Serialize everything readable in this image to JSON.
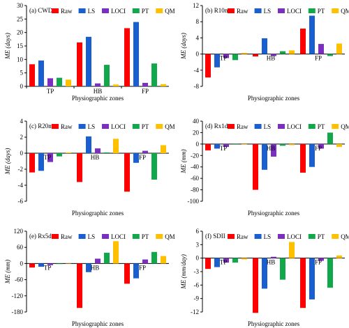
{
  "colors": {
    "Raw": "#ff0000",
    "LS": "#1a5fd1",
    "LOCI": "#7b2fbf",
    "PT": "#10a84a",
    "QM": "#ffc000"
  },
  "chart_data": [
    {
      "type": "bar",
      "panel_label": "(a) CWD",
      "ylabel": "ME (days)",
      "xlabel": "Physiographic zones",
      "categories": [
        "TP",
        "HB",
        "FP"
      ],
      "ylim": [
        0,
        30
      ],
      "yticks": [
        0,
        5,
        10,
        15,
        20,
        25,
        30
      ],
      "legend": "top-right",
      "category_labels_at": "bottom",
      "series": [
        {
          "name": "Raw",
          "values": [
            8.2,
            16.3,
            21.6
          ]
        },
        {
          "name": "LS",
          "values": [
            9.6,
            18.4,
            23.9
          ]
        },
        {
          "name": "LOCI",
          "values": [
            3.0,
            1.1,
            1.3
          ]
        },
        {
          "name": "PT",
          "values": [
            3.2,
            8.0,
            8.5
          ]
        },
        {
          "name": "QM",
          "values": [
            2.5,
            0.7,
            0.8
          ]
        }
      ]
    },
    {
      "type": "bar",
      "panel_label": "(b) R10mm",
      "ylabel": "ME (days)",
      "xlabel": "Physiographic zones",
      "categories": [
        "TP",
        "HB",
        "FP"
      ],
      "ylim": [
        -8,
        12
      ],
      "yticks": [
        -8,
        -4,
        0,
        4,
        8,
        12
      ],
      "legend": "top-right",
      "category_labels_at": "zero",
      "series": [
        {
          "name": "Raw",
          "values": [
            -5.8,
            -0.6,
            6.3
          ]
        },
        {
          "name": "LS",
          "values": [
            -3.3,
            3.9,
            9.5
          ]
        },
        {
          "name": "LOCI",
          "values": [
            -1.0,
            -0.5,
            2.5
          ]
        },
        {
          "name": "PT",
          "values": [
            -1.5,
            0.7,
            -0.5
          ]
        },
        {
          "name": "QM",
          "values": [
            0.3,
            0.9,
            2.6
          ]
        }
      ]
    },
    {
      "type": "bar",
      "panel_label": "(c) R20mm",
      "ylabel": "ME (days)",
      "xlabel": "Physiographic zones",
      "categories": [
        "TP",
        "HB",
        "FP"
      ],
      "ylim": [
        -6,
        4
      ],
      "yticks": [
        -6,
        -4,
        -2,
        0,
        2,
        4
      ],
      "legend": "top-right",
      "category_labels_at": "zero",
      "series": [
        {
          "name": "Raw",
          "values": [
            -2.4,
            -3.6,
            -4.8
          ]
        },
        {
          "name": "LS",
          "values": [
            -2.2,
            2.1,
            -1.2
          ]
        },
        {
          "name": "LOCI",
          "values": [
            -1.1,
            0.6,
            0.3
          ]
        },
        {
          "name": "PT",
          "values": [
            -0.4,
            0.1,
            -3.3
          ]
        },
        {
          "name": "QM",
          "values": [
            0.1,
            1.8,
            1.0
          ]
        }
      ]
    },
    {
      "type": "bar",
      "panel_label": "(d) Rx1d",
      "ylabel": "ME (mm)",
      "xlabel": "Physiographic zones",
      "categories": [
        "TP",
        "HB",
        "FP"
      ],
      "ylim": [
        -100,
        40
      ],
      "yticks": [
        -100,
        -80,
        -60,
        -40,
        -20,
        0,
        20,
        40
      ],
      "legend": "top-right",
      "category_labels_at": "zero",
      "series": [
        {
          "name": "Raw",
          "values": [
            -11,
            -80,
            -50
          ]
        },
        {
          "name": "LS",
          "values": [
            -8,
            -45,
            -40
          ]
        },
        {
          "name": "LOCI",
          "values": [
            -5,
            -22,
            -8
          ]
        },
        {
          "name": "PT",
          "values": [
            -1,
            -3,
            20
          ]
        },
        {
          "name": "QM",
          "values": [
            -1,
            -2,
            -5
          ]
        }
      ]
    },
    {
      "type": "bar",
      "panel_label": "(e) Rx5d",
      "ylabel": "ME (mm)",
      "xlabel": "Physiographic zones",
      "categories": [
        "TP",
        "HB",
        "FP"
      ],
      "ylim": [
        -180,
        120
      ],
      "yticks": [
        -180,
        -120,
        -60,
        0,
        60,
        120
      ],
      "legend": "top-right",
      "category_labels_at": "zero",
      "series": [
        {
          "name": "Raw",
          "values": [
            -15,
            -165,
            -75
          ]
        },
        {
          "name": "LS",
          "values": [
            -12,
            -32,
            -55
          ]
        },
        {
          "name": "LOCI",
          "values": [
            -6,
            18,
            15
          ]
        },
        {
          "name": "PT",
          "values": [
            -2,
            40,
            43
          ]
        },
        {
          "name": "QM",
          "values": [
            0,
            83,
            28
          ]
        }
      ]
    },
    {
      "type": "bar",
      "panel_label": "(f) SDII",
      "ylabel": "ME (mm/day)",
      "xlabel": "Physiographic zones",
      "categories": [
        "TP",
        "HB",
        "FP"
      ],
      "ylim": [
        -12,
        6
      ],
      "yticks": [
        -12,
        -9,
        -6,
        -3,
        0,
        3,
        6
      ],
      "legend": "top-right",
      "category_labels_at": "zero",
      "series": [
        {
          "name": "Raw",
          "values": [
            -2.4,
            -12.2,
            -11.1
          ]
        },
        {
          "name": "LS",
          "values": [
            -2.0,
            -6.8,
            -9.2
          ]
        },
        {
          "name": "LOCI",
          "values": [
            -1.0,
            0.3,
            -0.6
          ]
        },
        {
          "name": "PT",
          "values": [
            -1.0,
            -4.8,
            -6.6
          ]
        },
        {
          "name": "QM",
          "values": [
            -0.3,
            3.6,
            0.6
          ]
        }
      ]
    }
  ]
}
